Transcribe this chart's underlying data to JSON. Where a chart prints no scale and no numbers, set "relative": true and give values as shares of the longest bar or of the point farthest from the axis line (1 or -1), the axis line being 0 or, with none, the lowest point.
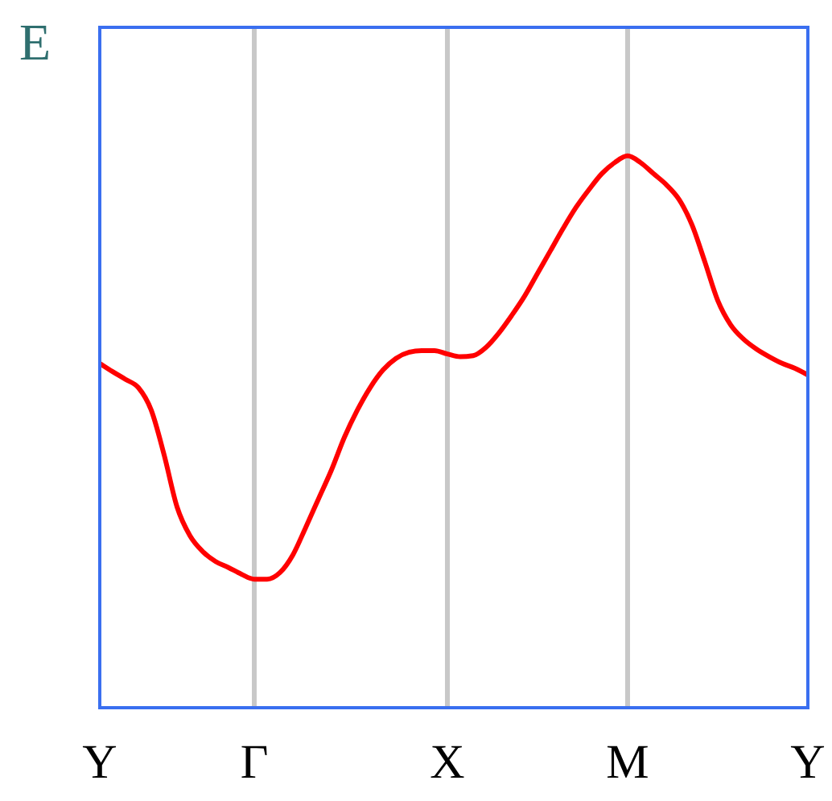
{
  "chart_data": {
    "type": "line",
    "relative": true,
    "ylabel": "E",
    "categories": [
      "Y",
      null,
      null,
      null,
      null,
      null,
      null,
      null,
      null,
      null,
      null,
      null,
      "Γ",
      null,
      null,
      null,
      null,
      null,
      null,
      null,
      null,
      null,
      null,
      null,
      null,
      null,
      null,
      "X",
      null,
      null,
      null,
      null,
      null,
      null,
      null,
      null,
      null,
      null,
      null,
      null,
      null,
      "M",
      null,
      null,
      null,
      null,
      null,
      null,
      null,
      null,
      null,
      null,
      null,
      null,
      null,
      "Y"
    ],
    "series": [
      {
        "color": "#ff0000",
        "values": [
          0.624,
          0.609,
          0.595,
          0.58,
          0.539,
          0.458,
          0.364,
          0.312,
          0.283,
          0.265,
          0.254,
          0.242,
          0.233,
          0.233,
          0.245,
          0.277,
          0.327,
          0.379,
          0.431,
          0.49,
          0.539,
          0.58,
          0.612,
          0.633,
          0.644,
          0.647,
          0.647,
          0.641,
          0.636,
          0.638,
          0.653,
          0.679,
          0.711,
          0.746,
          0.787,
          0.828,
          0.869,
          0.907,
          0.939,
          0.968,
          0.988,
          1,
          0.988,
          0.968,
          0.948,
          0.921,
          0.875,
          0.808,
          0.738,
          0.694,
          0.668,
          0.65,
          0.636,
          0.624,
          0.615,
          0.603
        ]
      }
    ],
    "ref_lines": [
      {
        "axis": "x",
        "value": "Γ",
        "color": "#c8c8c8"
      },
      {
        "axis": "x",
        "value": "X",
        "color": "#c8c8c8"
      },
      {
        "axis": "x",
        "value": "M",
        "color": "#c8c8c8"
      }
    ],
    "grid": false,
    "legend": false,
    "marker": "none",
    "line_style": "solid"
  }
}
